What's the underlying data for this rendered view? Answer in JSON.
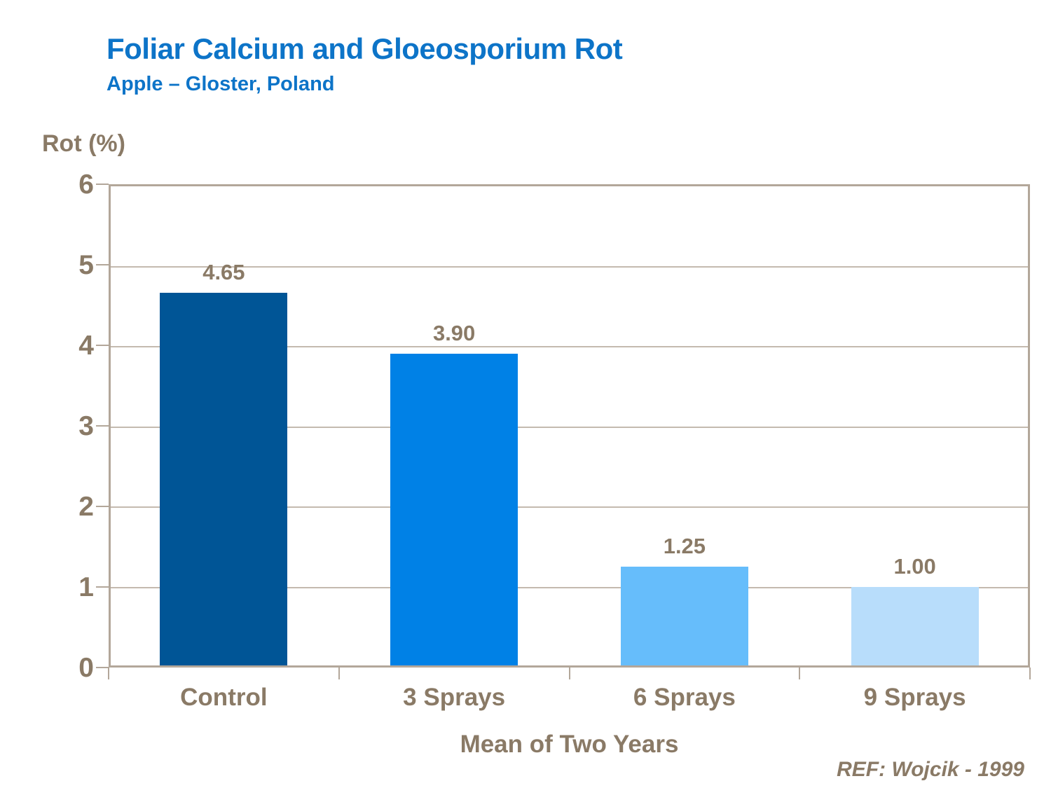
{
  "slide": {
    "title": "Foliar Calcium and Gloeosporium Rot",
    "subtitle": "Apple – Gloster, Poland",
    "ref": "REF: Wojcik - 1999"
  },
  "chart_data": {
    "type": "bar",
    "categories": [
      "Control",
      "3 Sprays",
      "6 Sprays",
      "9 Sprays"
    ],
    "values": [
      4.65,
      3.9,
      1.25,
      1.0
    ],
    "value_labels": [
      "4.65",
      "3.90",
      "1.25",
      "1.00"
    ],
    "title": "Foliar Calcium and Gloeosporium Rot",
    "subtitle": "Apple – Gloster, Poland",
    "xlabel": "Mean of Two Years",
    "ylabel": "Rot (%)",
    "ylim": [
      0,
      6
    ],
    "yticks": [
      0,
      1,
      2,
      3,
      4,
      5,
      6
    ],
    "grid": true,
    "legend": false,
    "annotation": "REF: Wojcik - 1999",
    "bar_colors": [
      "#005596",
      "#0081E6",
      "#66BDFB",
      "#B8DDFB"
    ]
  },
  "colors": {
    "title_blue": "#0D74C8",
    "text_brown": "#8A7A66",
    "axis_line": "#B3A79A",
    "gridline": "#C4BAAF",
    "background": "#FFFFFF"
  }
}
